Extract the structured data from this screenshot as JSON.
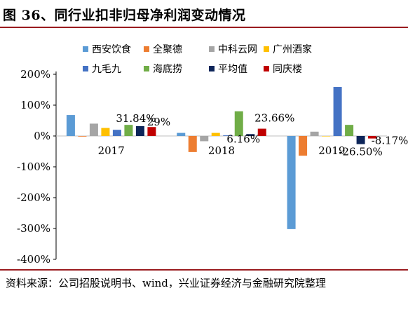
{
  "title": "图 36、同行业扣非归母净利润变动情况",
  "source": "资料来源：公司招股说明书、wind，兴业证券经济与金融研究院整理",
  "chart_data": {
    "type": "bar",
    "categories": [
      "2017",
      "2018",
      "2019"
    ],
    "ylim": [
      -4,
      2
    ],
    "yticks": [
      -4,
      -3,
      -2,
      -1,
      0,
      1,
      2
    ],
    "ytick_labels": [
      "-400%",
      "-300%",
      "-200%",
      "-100%",
      "0%",
      "100%",
      "200%"
    ],
    "legend_position": "top",
    "series": [
      {
        "name": "西安饮食",
        "color": "#5b9bd5",
        "values": [
          0.68,
          0.1,
          -3.02
        ]
      },
      {
        "name": "全聚德",
        "color": "#ed7d31",
        "values": [
          -0.02,
          -0.52,
          -0.64
        ]
      },
      {
        "name": "中科云网",
        "color": "#a5a5a5",
        "values": [
          0.4,
          -0.17,
          0.14
        ]
      },
      {
        "name": "广州酒家",
        "color": "#ffc000",
        "values": [
          0.26,
          0.1,
          0.0
        ]
      },
      {
        "name": "九毛九",
        "color": "#4472c4",
        "values": [
          0.2,
          0.02,
          1.59
        ]
      },
      {
        "name": "海底捞",
        "color": "#70ad47",
        "values": [
          0.36,
          0.8,
          0.36
        ]
      },
      {
        "name": "平均值",
        "color": "#0d2559",
        "values": [
          0.3184,
          0.0616,
          -0.265
        ]
      },
      {
        "name": "同庆楼",
        "color": "#c00000",
        "values": [
          0.29,
          0.2366,
          -0.0817
        ]
      }
    ],
    "data_labels": [
      {
        "text": "31.84%",
        "series": 6,
        "category": 0
      },
      {
        "text": "29%",
        "series": 7,
        "category": 0
      },
      {
        "text": "6.16%",
        "series": 6,
        "category": 1
      },
      {
        "text": "23.66%",
        "series": 7,
        "category": 1
      },
      {
        "text": "-26.50%",
        "series": 6,
        "category": 2
      },
      {
        "text": "-8.17%",
        "series": 7,
        "category": 2
      }
    ]
  }
}
